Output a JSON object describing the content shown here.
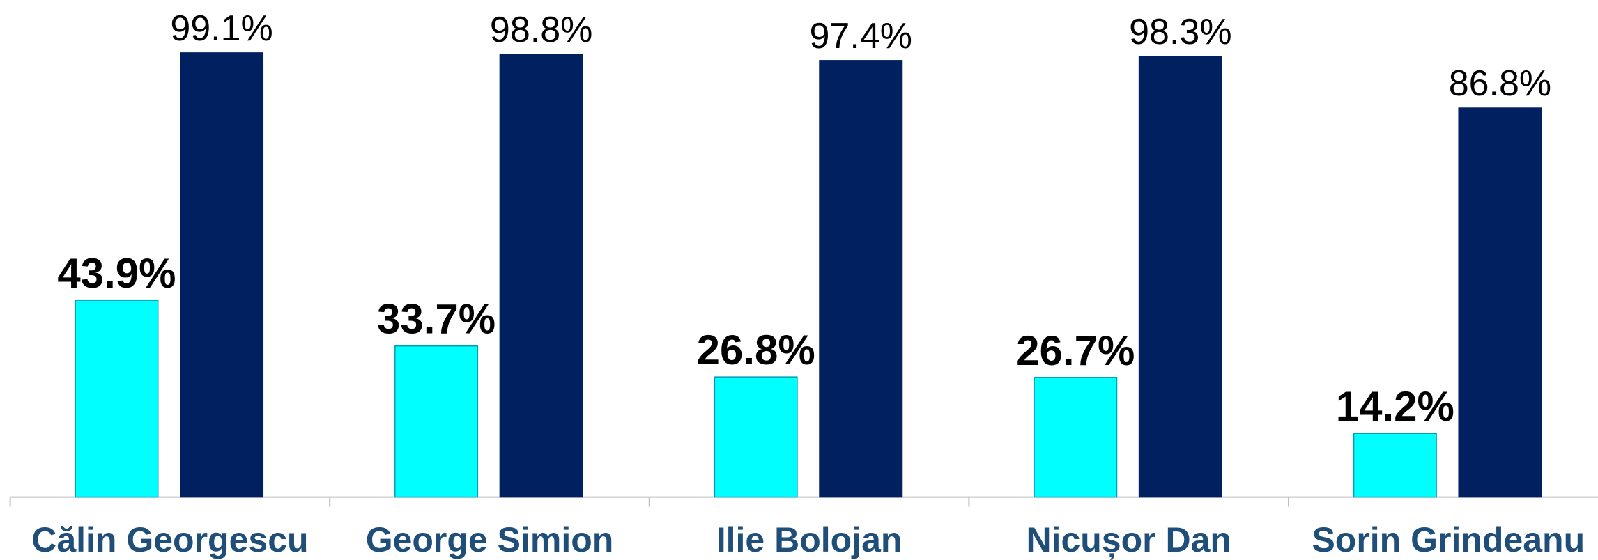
{
  "chart_data": {
    "type": "bar",
    "categories": [
      "Călin Georgescu",
      "George Simion",
      "Ilie Bolojan",
      "Nicușor Dan",
      "Sorin Grindeanu"
    ],
    "series": [
      {
        "color": "#00ffff",
        "values": [
          43.9,
          33.7,
          26.8,
          26.7,
          14.2
        ],
        "value_labels": [
          "43.9%",
          "33.7%",
          "26.8%",
          "26.7%",
          "14.2%"
        ]
      },
      {
        "color": "#002060",
        "values": [
          99.1,
          98.8,
          97.4,
          98.3,
          86.8
        ],
        "value_labels": [
          "99.1%",
          "98.8%",
          "97.4%",
          "98.3%",
          "86.8%"
        ]
      }
    ]
  }
}
